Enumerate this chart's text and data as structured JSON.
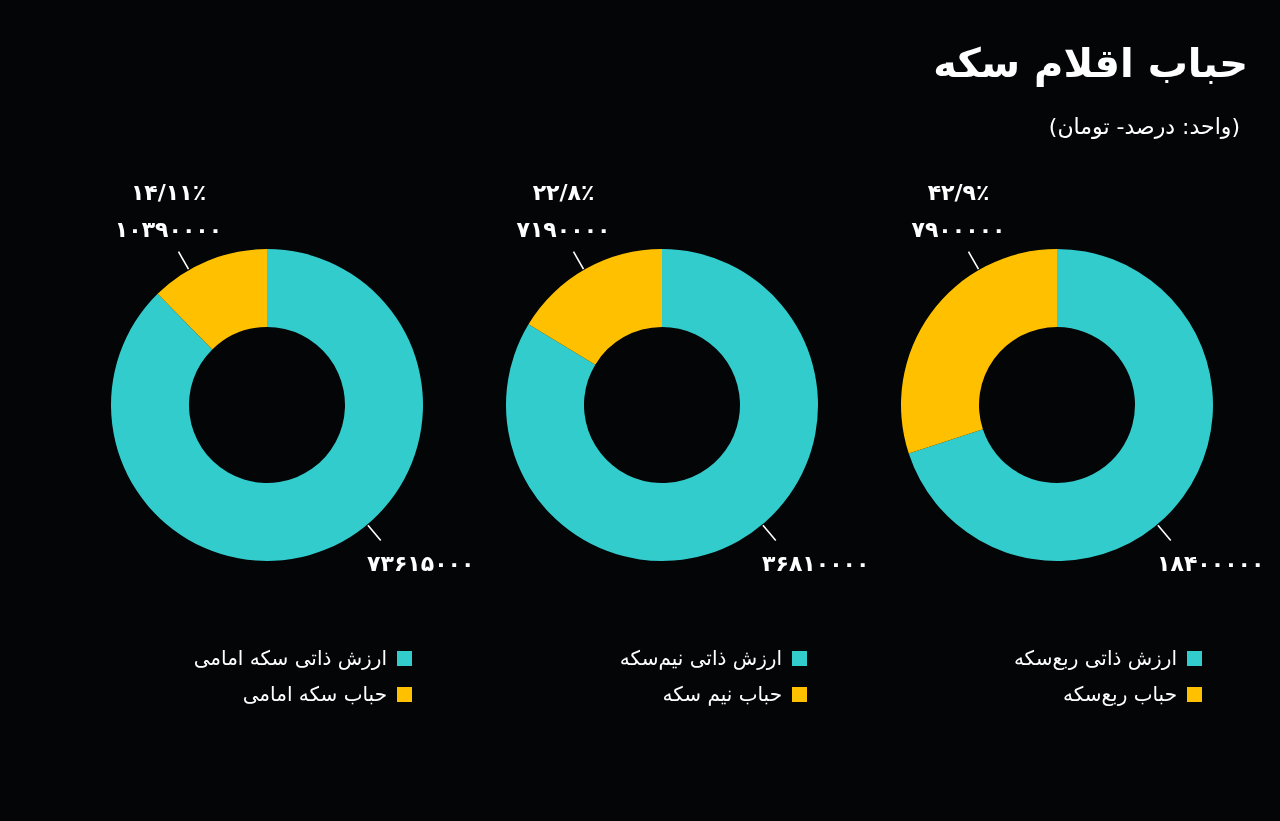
{
  "chart_data": [
    {
      "type": "donut",
      "title": "حباب اقلام سکه",
      "subtitle": "(واحد: درصد- تومان)",
      "categories": [
        "ارزش ذاتی ربع‌سکه",
        "حباب ربع‌سکه"
      ],
      "values": [
        18400000,
        7900000
      ],
      "colors": [
        "#33cccc",
        "#ffc000"
      ],
      "value_labels": [
        "۱۸۴۰۰۰۰۰",
        "۴۲/۹٪\n۷۹۰۰۰۰۰"
      ],
      "legend": "bottom"
    },
    {
      "type": "donut",
      "categories": [
        "ارزش ذاتی نیم‌سکه",
        "حباب نیم سکه"
      ],
      "values": [
        36810000,
        7190000
      ],
      "colors": [
        "#33cccc",
        "#ffc000"
      ],
      "value_labels": [
        "۳۶۸۱۰۰۰۰",
        "۲۲/۸٪\n۷۱۹۰۰۰۰"
      ],
      "legend": "bottom"
    },
    {
      "type": "donut",
      "categories": [
        "ارزش ذاتی سکه امامی",
        "حباب سکه امامی"
      ],
      "values": [
        73615000,
        10390000
      ],
      "colors": [
        "#33cccc",
        "#ffc000"
      ],
      "value_labels": [
        "۷۳۶۱۵۰۰۰",
        "۱۴/۱۱٪\n۱۰۳۹۰۰۰۰"
      ],
      "legend": "bottom"
    }
  ]
}
